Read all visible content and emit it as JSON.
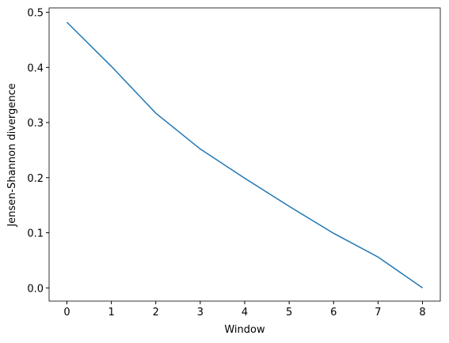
{
  "chart_data": {
    "type": "line",
    "xlabel": "Window",
    "ylabel": "Jensen-Shannon divergence",
    "x": [
      0,
      1,
      2,
      3,
      4,
      5,
      6,
      7,
      8
    ],
    "series": [
      {
        "color": "#1f77b4",
        "values": [
          0.482,
          0.402,
          0.317,
          0.252,
          0.199,
          0.148,
          0.099,
          0.056,
          0.0
        ]
      }
    ],
    "xlim": [
      -0.4,
      8.4
    ],
    "xticks": [
      0,
      1,
      2,
      3,
      4,
      5,
      6,
      7,
      8
    ],
    "ylim": [
      -0.024,
      0.508
    ],
    "yticks": [
      {
        "value": 0,
        "label": "0.0"
      },
      {
        "value": 0.1,
        "label": "0.1"
      },
      {
        "value": 0.2,
        "label": "0.2"
      },
      {
        "value": 0.3,
        "label": "0.3"
      },
      {
        "value": 0.4,
        "label": "0.4"
      },
      {
        "value": 0.5,
        "label": "0.5"
      }
    ]
  }
}
